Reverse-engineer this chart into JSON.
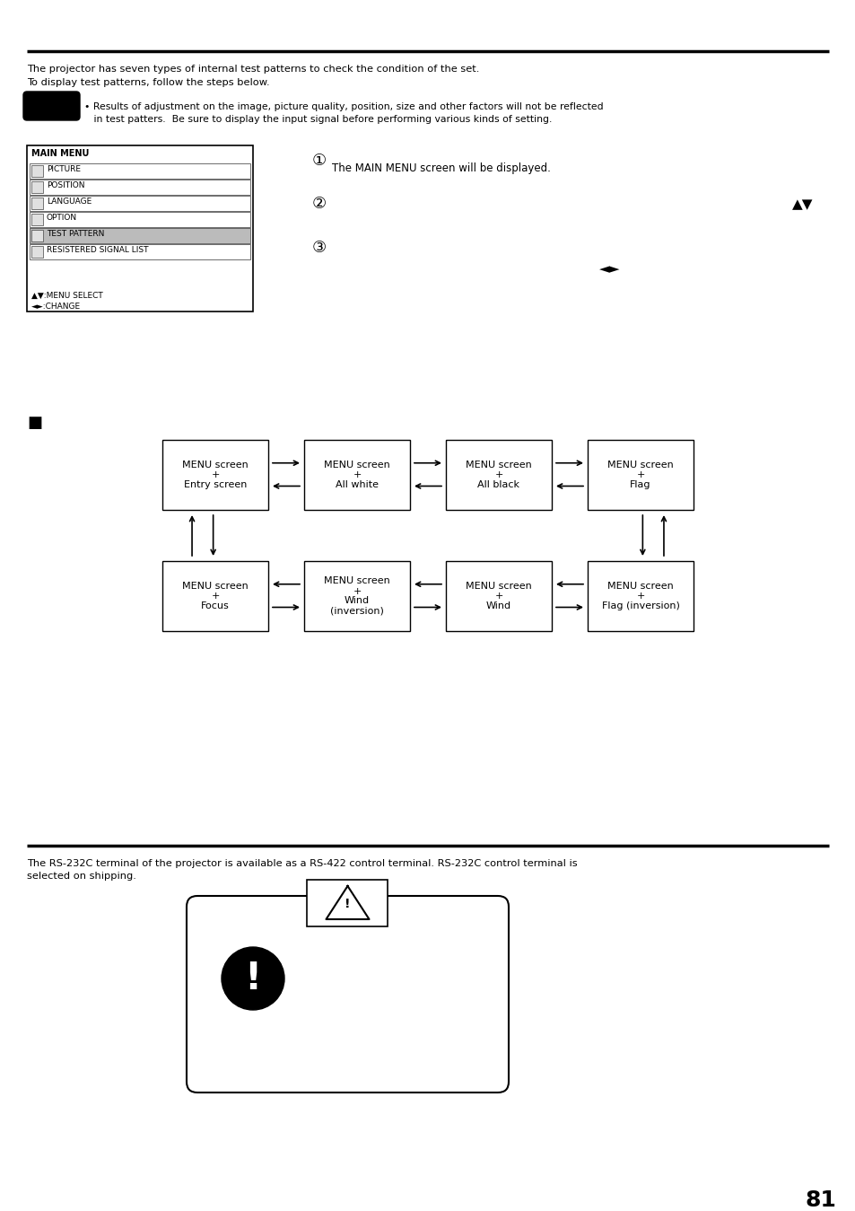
{
  "page_number": "81",
  "section1_text1": "The projector has seven types of internal test patterns to check the condition of the set.",
  "section1_text2": "To display test patterns, follow the steps below.",
  "note_text1": "• Results of adjustment on the image, picture quality, position, size and other factors will not be reflected",
  "note_text2": "   in test patters.  Be sure to display the input signal before performing various kinds of setting.",
  "menu_title": "MAIN MENU",
  "menu_items": [
    "PICTURE",
    "POSITION",
    "LANGUAGE",
    "OPTION",
    "TEST PATTERN",
    "RESISTERED SIGNAL LIST"
  ],
  "menu_highlight_index": 4,
  "menu_footer1": "▲▼:MENU SELECT",
  "menu_footer2": "◄►:CHANGE",
  "step1_circle": "①",
  "step1_text": "The MAIN MENU screen will be displayed.",
  "step2_circle": "②",
  "step2_arrows": "▲▼",
  "step3_circle": "③",
  "step3_arrows": "◄►",
  "cycle_square": "■",
  "boxes_top": [
    {
      "lines": [
        "MENU screen",
        "+",
        "Entry screen"
      ]
    },
    {
      "lines": [
        "MENU screen",
        "+",
        "All white"
      ]
    },
    {
      "lines": [
        "MENU screen",
        "+",
        "All black"
      ]
    },
    {
      "lines": [
        "MENU screen",
        "+",
        "Flag"
      ]
    }
  ],
  "boxes_bottom": [
    {
      "lines": [
        "MENU screen",
        "+",
        "Focus"
      ]
    },
    {
      "lines": [
        "MENU screen",
        "+",
        "Wind",
        "(inversion)"
      ]
    },
    {
      "lines": [
        "MENU screen",
        "+",
        "Wind"
      ]
    },
    {
      "lines": [
        "MENU screen",
        "+",
        "Flag (inversion)"
      ]
    }
  ],
  "section2_text1": "The RS-232C terminal of the projector is available as a RS-422 control terminal. RS-232C control terminal is",
  "section2_text2": "selected on shipping.",
  "bg_color": "#ffffff",
  "text_color": "#000000"
}
